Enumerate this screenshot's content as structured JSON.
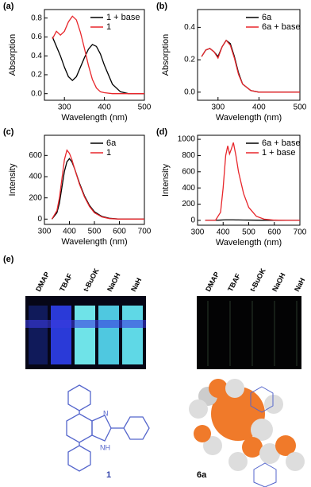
{
  "chart_data": [
    {
      "type": "line",
      "label": "(a)",
      "ylabel": "Absorption",
      "xlabel": "Wavelength (nm)",
      "x": [
        270,
        280,
        290,
        300,
        310,
        320,
        330,
        340,
        350,
        360,
        370,
        380,
        390,
        400,
        420,
        440,
        460,
        480,
        500
      ],
      "series": [
        {
          "name": "1 + base",
          "color": "#000000",
          "values": [
            0.6,
            0.5,
            0.4,
            0.28,
            0.18,
            0.14,
            0.18,
            0.28,
            0.38,
            0.47,
            0.52,
            0.5,
            0.42,
            0.3,
            0.1,
            0.02,
            0.0,
            0.0,
            0.0
          ]
        },
        {
          "name": "1",
          "color": "#e8262b",
          "values": [
            0.58,
            0.66,
            0.62,
            0.66,
            0.76,
            0.82,
            0.78,
            0.65,
            0.48,
            0.3,
            0.15,
            0.06,
            0.02,
            0.01,
            0,
            0,
            0,
            0,
            0
          ]
        }
      ],
      "xlim": [
        250,
        500
      ],
      "xticks": [
        300,
        400,
        500
      ],
      "ylim": [
        -0.07,
        0.89
      ],
      "yticks": [
        {
          "value": 0,
          "label": "0.0"
        },
        {
          "value": 0.2,
          "label": "0.2"
        },
        {
          "value": 0.4,
          "label": "0.4"
        },
        {
          "value": 0.6,
          "label": "0.6"
        },
        {
          "value": 0.8,
          "label": "0.8"
        }
      ]
    },
    {
      "type": "line",
      "label": "(b)",
      "ylabel": "Absorption",
      "xlabel": "Wavelength (nm)",
      "x": [
        260,
        270,
        280,
        290,
        300,
        310,
        320,
        330,
        340,
        350,
        360,
        380,
        400,
        450,
        500
      ],
      "series": [
        {
          "name": "6a",
          "color": "#000000",
          "values": [
            0.22,
            0.26,
            0.27,
            0.25,
            0.22,
            0.28,
            0.32,
            0.3,
            0.22,
            0.12,
            0.05,
            0.01,
            0,
            0,
            0
          ]
        },
        {
          "name": "6a + base",
          "color": "#e8262b",
          "values": [
            0.22,
            0.26,
            0.27,
            0.25,
            0.21,
            0.28,
            0.32,
            0.29,
            0.21,
            0.11,
            0.05,
            0.01,
            0,
            0,
            0
          ]
        }
      ],
      "xlim": [
        250,
        500
      ],
      "xticks": [
        300,
        400,
        500
      ],
      "ylim": [
        -0.05,
        0.51
      ],
      "yticks": [
        {
          "value": 0,
          "label": "0.0"
        },
        {
          "value": 0.2,
          "label": "0.2"
        },
        {
          "value": 0.4,
          "label": "0.4"
        }
      ]
    },
    {
      "type": "line",
      "label": "(c)",
      "ylabel": "Intensity",
      "xlabel": "Wavelength (nm)",
      "x": [
        330,
        350,
        360,
        370,
        380,
        390,
        400,
        410,
        420,
        440,
        460,
        480,
        500,
        530,
        560,
        600,
        650,
        700
      ],
      "series": [
        {
          "name": "6a",
          "color": "#000000",
          "values": [
            0,
            60,
            150,
            300,
            450,
            540,
            570,
            540,
            480,
            340,
            220,
            130,
            70,
            25,
            8,
            0,
            0,
            0
          ]
        },
        {
          "name": "1",
          "color": "#e8262b",
          "values": [
            0,
            80,
            200,
            380,
            560,
            650,
            620,
            560,
            480,
            330,
            210,
            120,
            60,
            20,
            5,
            0,
            0,
            0
          ]
        }
      ],
      "xlim": [
        300,
        700
      ],
      "xticks": [
        300,
        400,
        500,
        600,
        700
      ],
      "ylim": [
        -50,
        790
      ],
      "yticks": [
        0,
        200,
        400,
        600
      ]
    },
    {
      "type": "line",
      "label": "(d)",
      "ylabel": "Intensity",
      "xlabel": "Wavelength (nm)",
      "x": [
        330,
        370,
        390,
        400,
        410,
        418,
        425,
        432,
        440,
        450,
        460,
        480,
        500,
        530,
        560,
        600,
        650,
        700
      ],
      "series": [
        {
          "name": "6a + base",
          "color": "#000000",
          "values": [
            0,
            0,
            3,
            5,
            6,
            6,
            6,
            6,
            6,
            5,
            5,
            4,
            3,
            2,
            1,
            0,
            0,
            0
          ]
        },
        {
          "name": "1 + base",
          "color": "#e8262b",
          "values": [
            0,
            0,
            100,
            400,
            800,
            920,
            820,
            880,
            960,
            800,
            600,
            330,
            160,
            50,
            15,
            3,
            0,
            0
          ]
        }
      ],
      "xlim": [
        300,
        700
      ],
      "xticks": [
        300,
        400,
        500,
        600,
        700
      ],
      "ylim": [
        -60,
        1050
      ],
      "yticks": [
        0,
        200,
        400,
        600,
        800,
        1000
      ]
    }
  ],
  "panel_e": {
    "label": "(e)",
    "bases_left": [
      "DMAP",
      "TBAF",
      "t-BuOK",
      "NaOH",
      "NaH"
    ],
    "bases_right": [
      "DMAP",
      "TBAF",
      "t-BuOK",
      "NaOH",
      "NaH"
    ],
    "compound_left": "1",
    "compound_right": "6a",
    "atom_n": "N",
    "atom_nh": "NH"
  }
}
